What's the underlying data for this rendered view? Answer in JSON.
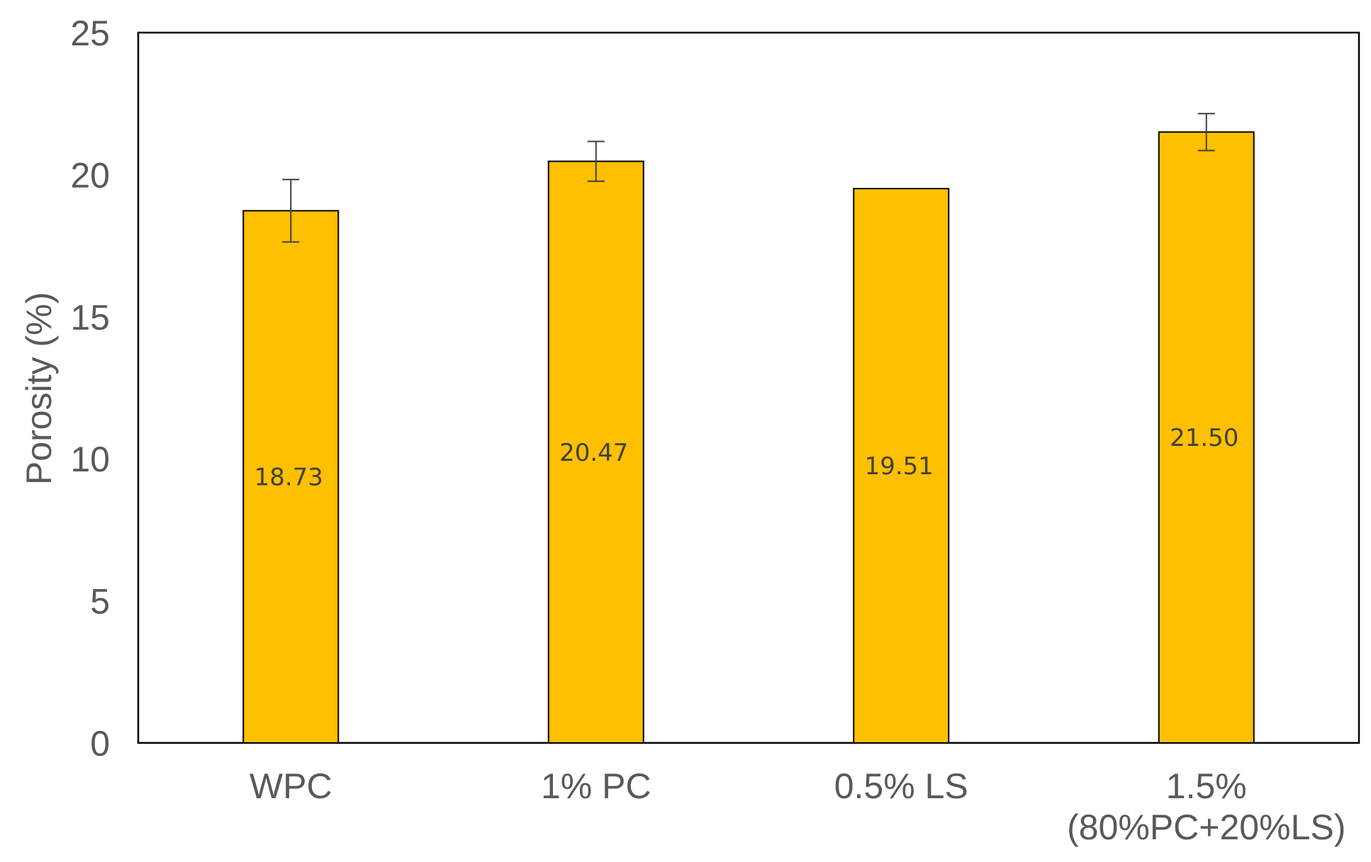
{
  "chart_data": {
    "type": "bar",
    "title": "",
    "xlabel": "",
    "ylabel": "Porosity (%)",
    "ylim": [
      0,
      25
    ],
    "yticks": [
      0,
      5,
      10,
      15,
      20,
      25
    ],
    "grid": false,
    "legend": "none",
    "categories": [
      [
        "WPC"
      ],
      [
        "1% PC"
      ],
      [
        "0.5% LS"
      ],
      [
        "1.5%",
        "(80%PC+20%LS)"
      ]
    ],
    "values": [
      18.73,
      20.47,
      19.51,
      21.5
    ],
    "value_labels": [
      "18.73",
      "20.47",
      "19.51",
      "21.50"
    ],
    "error": [
      1.1,
      0.7,
      0.0,
      0.65
    ],
    "bar_color": "#FFC000",
    "bar_edge_color": "#000000",
    "axis_text_color": "#595959"
  }
}
